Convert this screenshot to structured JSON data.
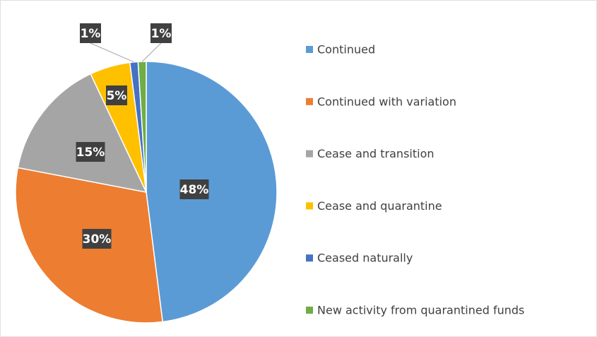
{
  "chart_data": {
    "type": "pie",
    "categories": [
      "Continued",
      "Continued with variation",
      "Cease and transition",
      "Cease and quarantine",
      "Ceased naturally",
      "New activity from quarantined funds"
    ],
    "values": [
      48,
      30,
      15,
      5,
      1,
      1
    ],
    "value_labels": [
      "48%",
      "30%",
      "15%",
      "5%",
      "1%",
      "1%"
    ],
    "colors": [
      "#5b9bd5",
      "#ed7d31",
      "#a5a5a5",
      "#ffc000",
      "#4472c4",
      "#70ad47"
    ],
    "legend": "right"
  }
}
